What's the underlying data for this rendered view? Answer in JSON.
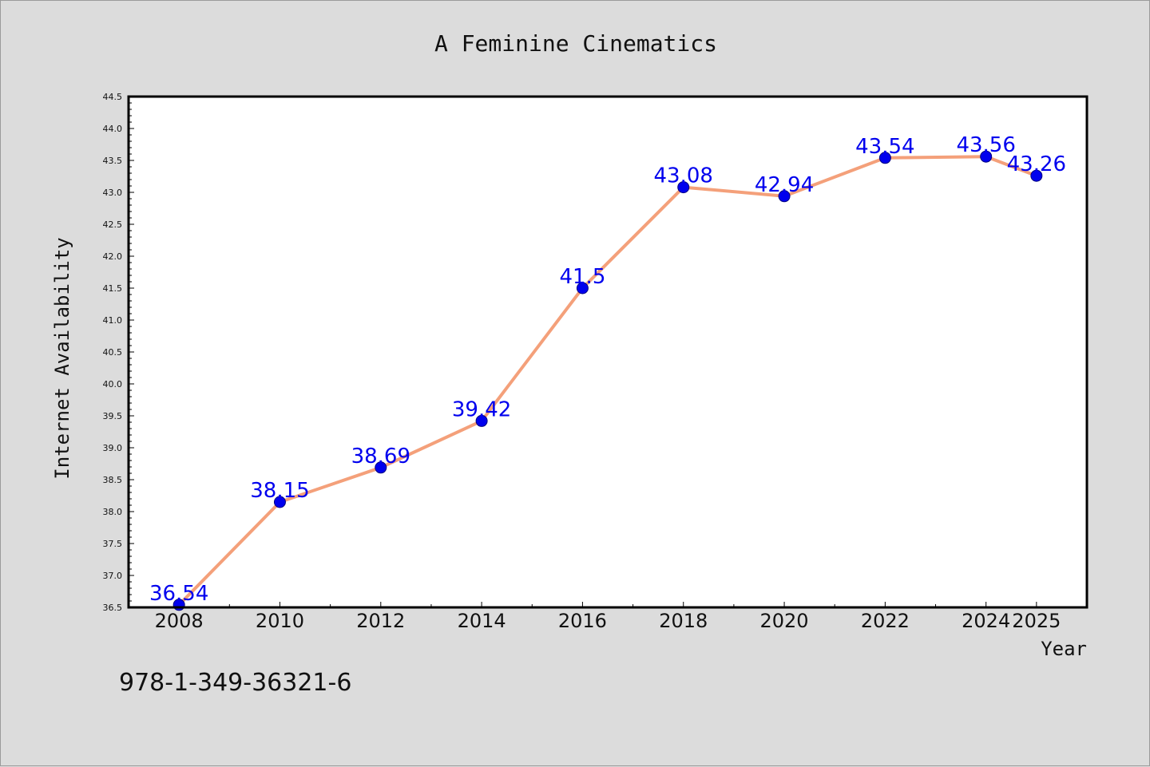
{
  "chart_data": {
    "type": "line",
    "title": "A Feminine Cinematics",
    "xlabel": "Year",
    "ylabel": "Internet Availability",
    "x": [
      "2008",
      "2010",
      "2012",
      "2014",
      "2016",
      "2018",
      "2020",
      "2022",
      "2024",
      "2025"
    ],
    "series": [
      {
        "values": [
          36.54,
          38.15,
          38.69,
          39.42,
          41.5,
          43.08,
          42.94,
          43.54,
          43.56,
          43.26
        ],
        "data_labels": [
          "36.54",
          "38.15",
          "38.69",
          "39.42",
          "41.5",
          "43.08",
          "42.94",
          "43.54",
          "43.56",
          "43.26"
        ]
      }
    ],
    "ylim": [
      36.5,
      44.5
    ],
    "yticks": [
      "36.5",
      "37.0",
      "37.5",
      "38.0",
      "38.5",
      "39.0",
      "39.5",
      "40.0",
      "40.5",
      "41.0",
      "41.5",
      "42.0",
      "42.5",
      "43.0",
      "43.5",
      "44.0",
      "44.5"
    ],
    "grid": false,
    "legend": "none"
  },
  "footer": {
    "isbn": "978-1-349-36321-6"
  },
  "colors": {
    "background": "#dcdcdc",
    "plot_background": "#ffffff",
    "line": "#f4a07a",
    "marker": "#0000ee",
    "marker_edge": "#000080",
    "data_label": "#0000ee"
  }
}
